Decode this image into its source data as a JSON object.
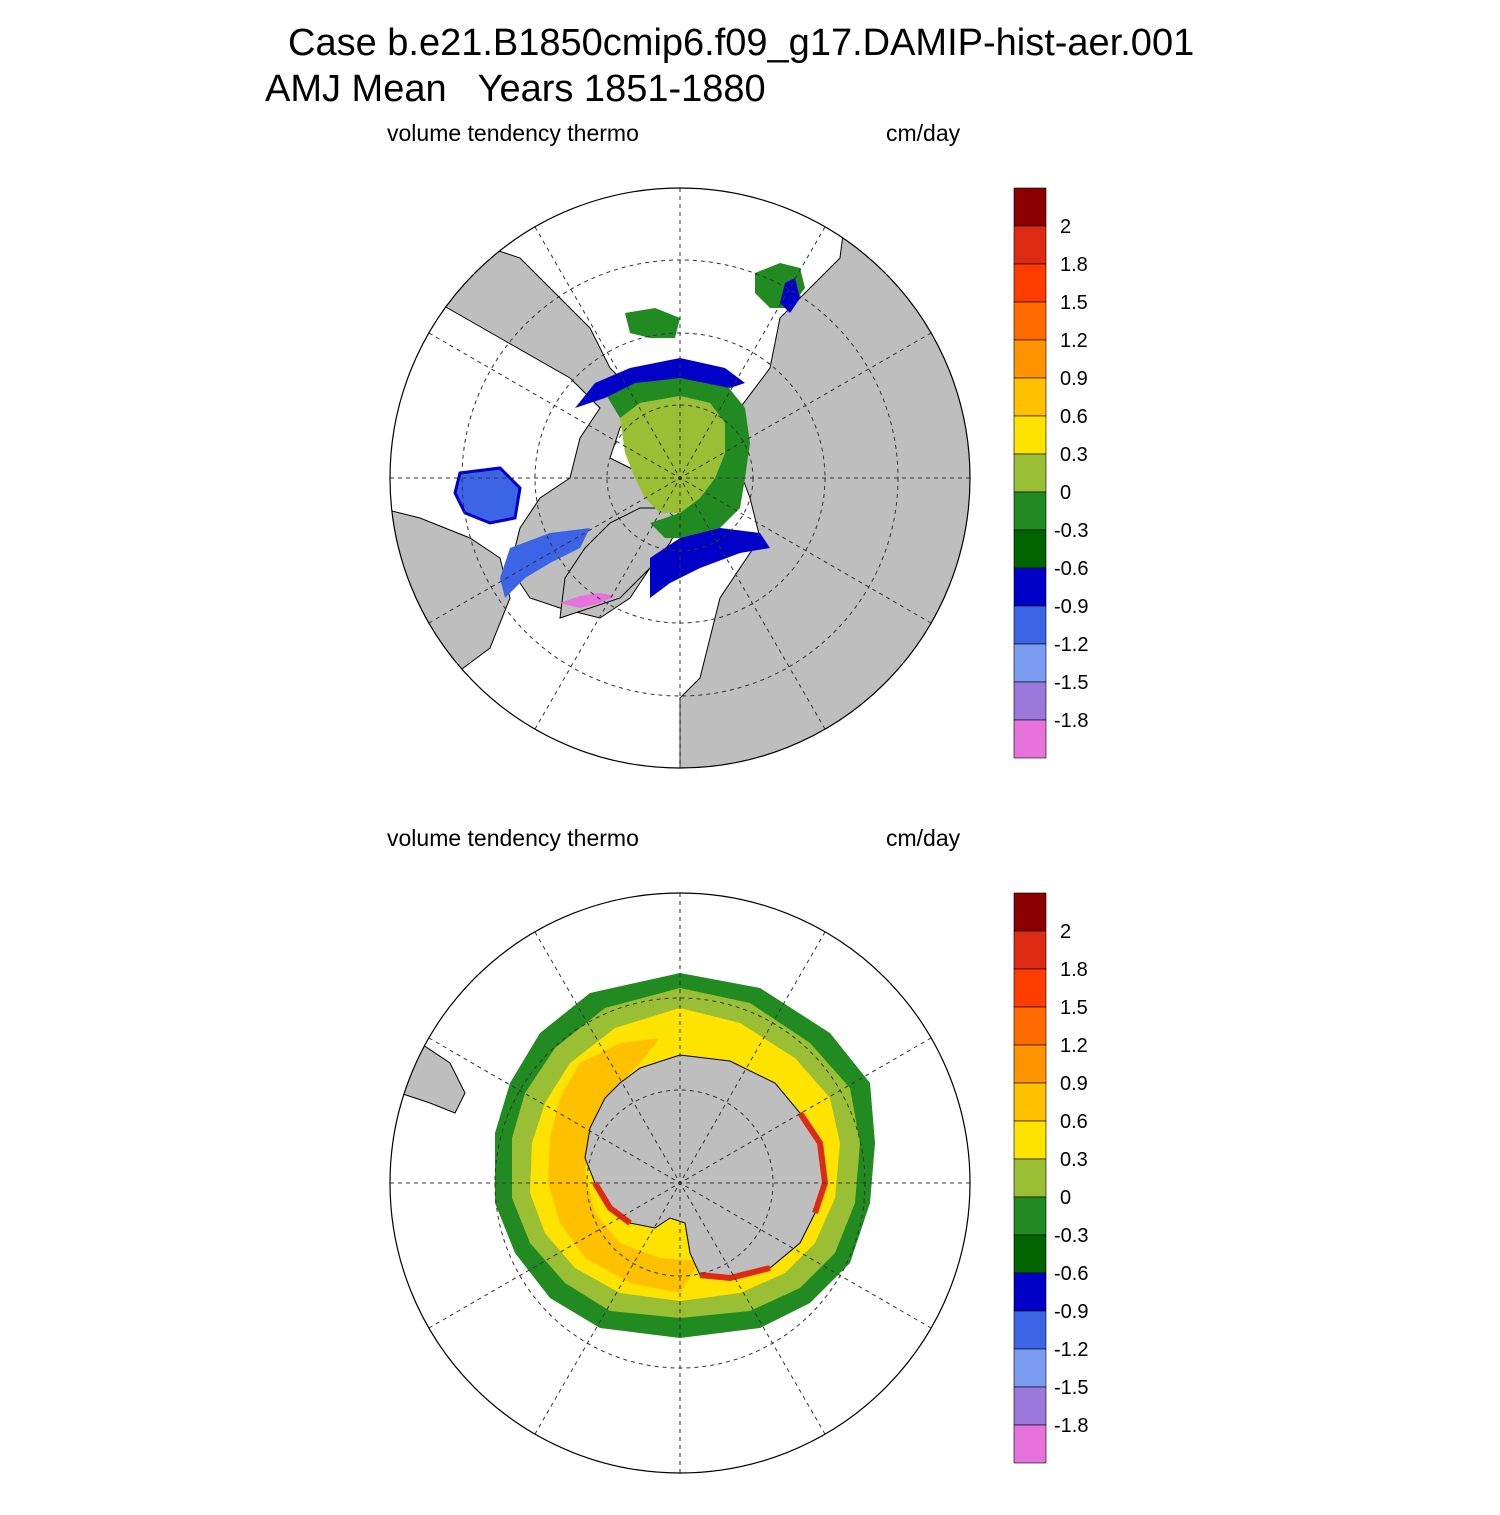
{
  "title": {
    "line1": "Case b.e21.B1850cmip6.f09_g17.DAMIP-hist-aer.001",
    "line2": "AMJ Mean   Years 1851-1880"
  },
  "panels": [
    {
      "id": "north",
      "hemisphere": "Northern",
      "variable_label": "volume tendency thermo",
      "units_label": "cm/day"
    },
    {
      "id": "south",
      "hemisphere": "Southern",
      "variable_label": "volume tendency thermo",
      "units_label": "cm/day"
    }
  ],
  "colorbar": {
    "tick_labels": [
      "2",
      "1.8",
      "1.5",
      "1.2",
      "0.9",
      "0.6",
      "0.3",
      "0",
      "-0.3",
      "-0.6",
      "-0.9",
      "-1.2",
      "-1.5",
      "-1.8"
    ],
    "colors_top_to_bottom": [
      "#8b0000",
      "#dc2b12",
      "#ff3c00",
      "#ff6a00",
      "#ff9400",
      "#ffc000",
      "#ffe300",
      "#9abf34",
      "#218a21",
      "#006400",
      "#0000c8",
      "#3c64e6",
      "#7a9cf0",
      "#9a78dc",
      "#e673dc"
    ]
  },
  "colors": {
    "land": "#bebebe",
    "ocean": "#ffffff",
    "grid": "#333333"
  }
}
